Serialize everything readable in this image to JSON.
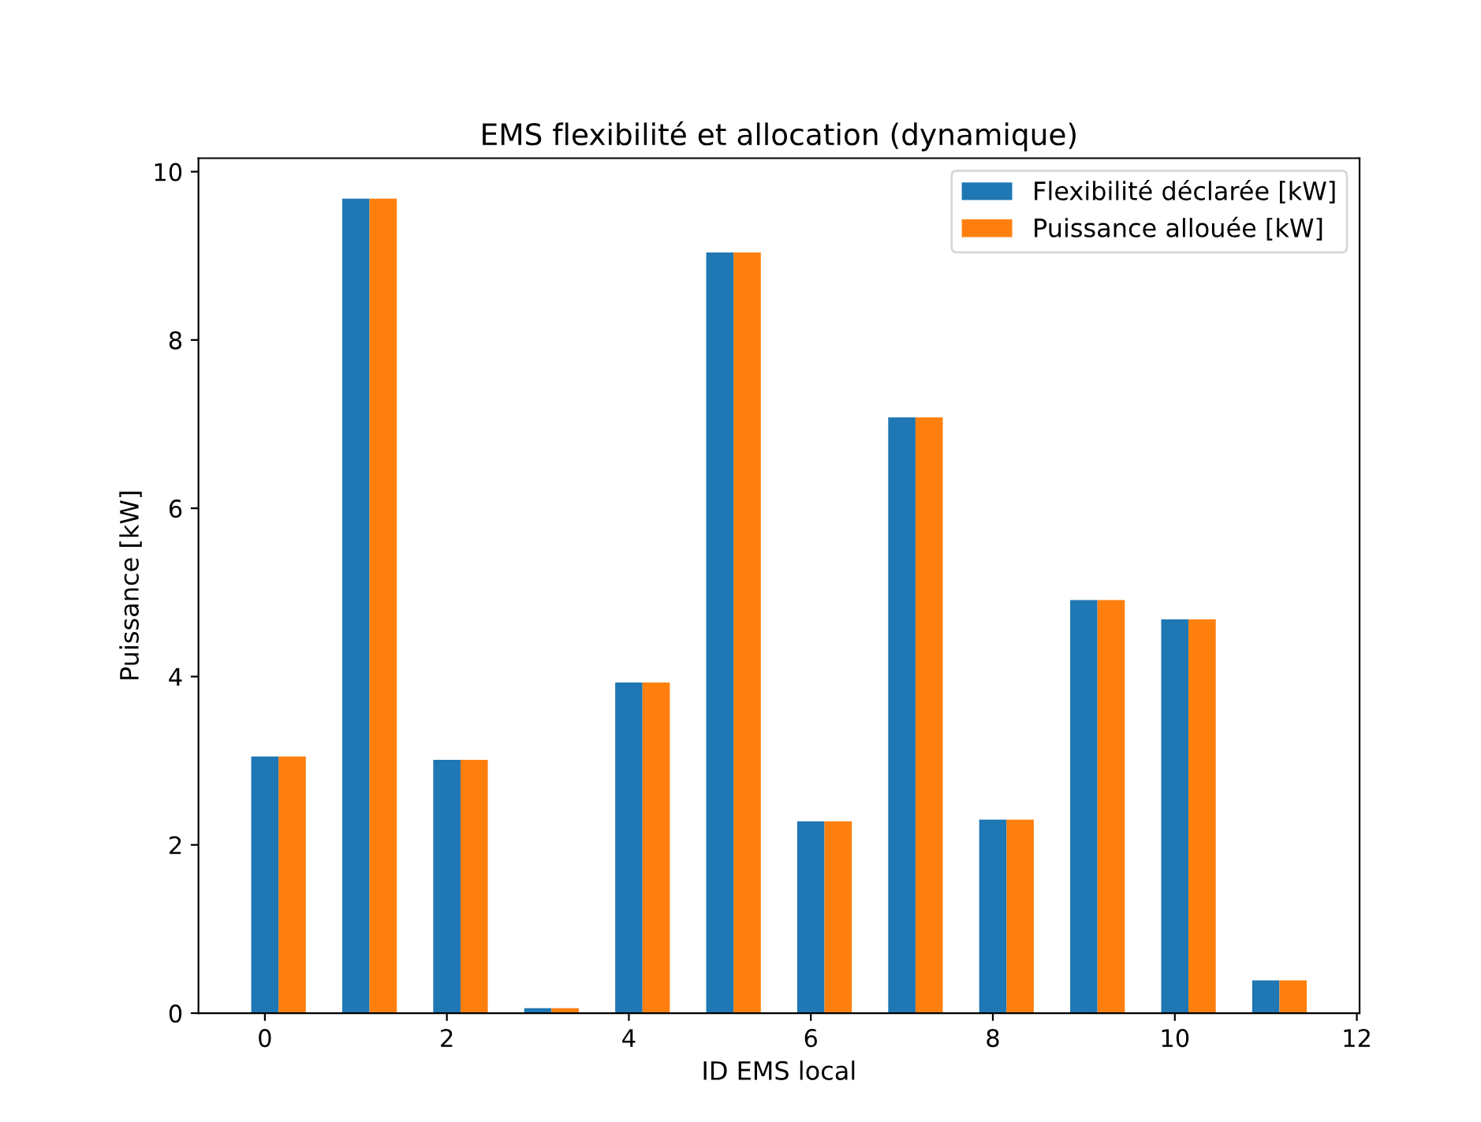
{
  "chart_data": {
    "type": "bar",
    "title": "EMS flexibilité et allocation (dynamique)",
    "xlabel": "ID EMS local",
    "ylabel": "Puissance [kW]",
    "x": [
      0,
      1,
      2,
      3,
      4,
      5,
      6,
      7,
      8,
      9,
      10,
      11
    ],
    "series": [
      {
        "name": "Flexibilité déclarée [kW]",
        "color": "#1f77b4",
        "values": [
          3.05,
          9.68,
          3.01,
          0.06,
          3.93,
          9.04,
          2.28,
          7.08,
          2.3,
          4.91,
          4.68,
          0.39
        ]
      },
      {
        "name": "Puissance allouée [kW]",
        "color": "#ff7f0e",
        "values": [
          3.05,
          9.68,
          3.01,
          0.06,
          3.93,
          9.04,
          2.28,
          7.08,
          2.3,
          4.91,
          4.68,
          0.39
        ]
      }
    ],
    "xlim": [
      -0.73,
      12.03
    ],
    "xticks": [
      0,
      2,
      4,
      6,
      8,
      10,
      12
    ],
    "ylim": [
      0,
      10.16
    ],
    "yticks": [
      0,
      2,
      4,
      6,
      8,
      10
    ],
    "grid": false,
    "legend": "top right"
  }
}
